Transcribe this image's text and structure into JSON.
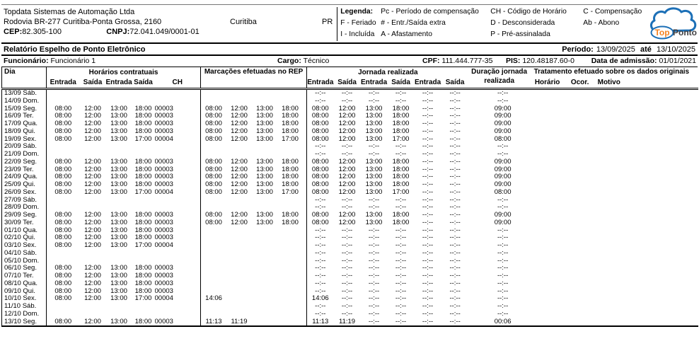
{
  "company": {
    "name": "Topdata Sistemas de Automação Ltda",
    "address": "Rodovia BR-277 Curitiba-Ponta Grossa, 2160",
    "city": "Curitiba",
    "state": "PR",
    "cep_label": "CEP:",
    "cep": "82.305-100",
    "cnpj_label": "CNPJ:",
    "cnpj": "72.041.049/0001-01"
  },
  "legend": {
    "rows": [
      [
        "Legenda:",
        "Pc - Período de compensação",
        "CH - Código de Horário",
        "C - Compensação"
      ],
      [
        "F - Feriado",
        "# - Entr./Saída extra",
        "D - Desconsiderada",
        "Ab - Abono"
      ],
      [
        "I - Incluída",
        "A - Afastamento",
        "P - Pré-assinalada",
        ""
      ]
    ]
  },
  "logo": {
    "top": "Top",
    "ponto": "Ponto",
    "cloud_color": "#1d70b7",
    "top_color": "#f58220",
    "ponto_color": "#414042"
  },
  "report": {
    "title": "Relatório Espelho de Ponto Eletrônico",
    "period_label": "Período:",
    "period_start": "13/09/2025",
    "period_until": "até",
    "period_end": "13/10/2025"
  },
  "employee": {
    "label": "Funcionário:",
    "name": "Funcionário 1",
    "cargo_label": "Cargo:",
    "cargo": "Técnico",
    "cpf_label": "CPF:",
    "cpf": "111.444.777-35",
    "pis_label": "PIS:",
    "pis": "120.48187.60-0",
    "admission_label": "Data de admissão:",
    "admission": "01/01/2021"
  },
  "table": {
    "headers": {
      "dia": "Dia",
      "contract_group": "Horários contratuais",
      "contract_cols": [
        "Entrada",
        "Saída",
        "Entrada",
        "Saída",
        "CH"
      ],
      "rep_group": "Marcações efetuadas no REP",
      "journey_group": "Jornada realizada",
      "journey_cols": [
        "Entrada",
        "Saída",
        "Entrada",
        "Saída",
        "Entrada",
        "Saída"
      ],
      "duration_line1": "Duração jornada",
      "duration_line2": "realizada",
      "treatment_group": "Tratamento efetuado sobre os dados originais",
      "treatment_cols": [
        "Horário",
        "Ocor.",
        "Motivo"
      ]
    },
    "rows": [
      {
        "day": "13/09 Sáb.",
        "contract": [],
        "rep": [],
        "journey": [
          "--:--",
          "--:--",
          "--:--",
          "--:--",
          "--:--",
          "--:--"
        ],
        "duration": "--:--",
        "treatment": [
          "",
          "",
          ""
        ]
      },
      {
        "day": "14/09 Dom.",
        "contract": [],
        "rep": [],
        "journey": [
          "--:--",
          "--:--",
          "--:--",
          "--:--",
          "--:--",
          "--:--"
        ],
        "duration": "--:--",
        "treatment": [
          "",
          "",
          ""
        ]
      },
      {
        "day": "15/09 Seg.",
        "contract": [
          "08:00",
          "12:00",
          "13:00",
          "18:00",
          "00003"
        ],
        "rep": [
          "08:00",
          "12:00",
          "13:00",
          "18:00"
        ],
        "journey": [
          "08:00",
          "12:00",
          "13:00",
          "18:00",
          "--:--",
          "--:--"
        ],
        "duration": "09:00",
        "treatment": [
          "",
          "",
          ""
        ]
      },
      {
        "day": "16/09 Ter.",
        "contract": [
          "08:00",
          "12:00",
          "13:00",
          "18:00",
          "00003"
        ],
        "rep": [
          "08:00",
          "12:00",
          "13:00",
          "18:00"
        ],
        "journey": [
          "08:00",
          "12:00",
          "13:00",
          "18:00",
          "--:--",
          "--:--"
        ],
        "duration": "09:00",
        "treatment": [
          "",
          "",
          ""
        ]
      },
      {
        "day": "17/09 Qua.",
        "contract": [
          "08:00",
          "12:00",
          "13:00",
          "18:00",
          "00003"
        ],
        "rep": [
          "08:00",
          "12:00",
          "13:00",
          "18:00"
        ],
        "journey": [
          "08:00",
          "12:00",
          "13:00",
          "18:00",
          "--:--",
          "--:--"
        ],
        "duration": "09:00",
        "treatment": [
          "",
          "",
          ""
        ]
      },
      {
        "day": "18/09 Qui.",
        "contract": [
          "08:00",
          "12:00",
          "13:00",
          "18:00",
          "00003"
        ],
        "rep": [
          "08:00",
          "12:00",
          "13:00",
          "18:00"
        ],
        "journey": [
          "08:00",
          "12:00",
          "13:00",
          "18:00",
          "--:--",
          "--:--"
        ],
        "duration": "09:00",
        "treatment": [
          "",
          "",
          ""
        ]
      },
      {
        "day": "19/09 Sex.",
        "contract": [
          "08:00",
          "12:00",
          "13:00",
          "17:00",
          "00004"
        ],
        "rep": [
          "08:00",
          "12:00",
          "13:00",
          "17:00"
        ],
        "journey": [
          "08:00",
          "12:00",
          "13:00",
          "17:00",
          "--:--",
          "--:--"
        ],
        "duration": "08:00",
        "treatment": [
          "",
          "",
          ""
        ]
      },
      {
        "day": "20/09 Sáb.",
        "contract": [],
        "rep": [],
        "journey": [
          "--:--",
          "--:--",
          "--:--",
          "--:--",
          "--:--",
          "--:--"
        ],
        "duration": "--:--",
        "treatment": [
          "",
          "",
          ""
        ]
      },
      {
        "day": "21/09 Dom.",
        "contract": [],
        "rep": [],
        "journey": [
          "--:--",
          "--:--",
          "--:--",
          "--:--",
          "--:--",
          "--:--"
        ],
        "duration": "--:--",
        "treatment": [
          "",
          "",
          ""
        ]
      },
      {
        "day": "22/09 Seg.",
        "contract": [
          "08:00",
          "12:00",
          "13:00",
          "18:00",
          "00003"
        ],
        "rep": [
          "08:00",
          "12:00",
          "13:00",
          "18:00"
        ],
        "journey": [
          "08:00",
          "12:00",
          "13:00",
          "18:00",
          "--:--",
          "--:--"
        ],
        "duration": "09:00",
        "treatment": [
          "",
          "",
          ""
        ]
      },
      {
        "day": "23/09 Ter.",
        "contract": [
          "08:00",
          "12:00",
          "13:00",
          "18:00",
          "00003"
        ],
        "rep": [
          "08:00",
          "12:00",
          "13:00",
          "18:00"
        ],
        "journey": [
          "08:00",
          "12:00",
          "13:00",
          "18:00",
          "--:--",
          "--:--"
        ],
        "duration": "09:00",
        "treatment": [
          "",
          "",
          ""
        ]
      },
      {
        "day": "24/09 Qua.",
        "contract": [
          "08:00",
          "12:00",
          "13:00",
          "18:00",
          "00003"
        ],
        "rep": [
          "08:00",
          "12:00",
          "13:00",
          "18:00"
        ],
        "journey": [
          "08:00",
          "12:00",
          "13:00",
          "18:00",
          "--:--",
          "--:--"
        ],
        "duration": "09:00",
        "treatment": [
          "",
          "",
          ""
        ]
      },
      {
        "day": "25/09 Qui.",
        "contract": [
          "08:00",
          "12:00",
          "13:00",
          "18:00",
          "00003"
        ],
        "rep": [
          "08:00",
          "12:00",
          "13:00",
          "18:00"
        ],
        "journey": [
          "08:00",
          "12:00",
          "13:00",
          "18:00",
          "--:--",
          "--:--"
        ],
        "duration": "09:00",
        "treatment": [
          "",
          "",
          ""
        ]
      },
      {
        "day": "26/09 Sex.",
        "contract": [
          "08:00",
          "12:00",
          "13:00",
          "17:00",
          "00004"
        ],
        "rep": [
          "08:00",
          "12:00",
          "13:00",
          "17:00"
        ],
        "journey": [
          "08:00",
          "12:00",
          "13:00",
          "17:00",
          "--:--",
          "--:--"
        ],
        "duration": "08:00",
        "treatment": [
          "",
          "",
          ""
        ]
      },
      {
        "day": "27/09 Sáb.",
        "contract": [],
        "rep": [],
        "journey": [
          "--:--",
          "--:--",
          "--:--",
          "--:--",
          "--:--",
          "--:--"
        ],
        "duration": "--:--",
        "treatment": [
          "",
          "",
          ""
        ]
      },
      {
        "day": "28/09 Dom.",
        "contract": [],
        "rep": [],
        "journey": [
          "--:--",
          "--:--",
          "--:--",
          "--:--",
          "--:--",
          "--:--"
        ],
        "duration": "--:--",
        "treatment": [
          "",
          "",
          ""
        ]
      },
      {
        "day": "29/09 Seg.",
        "contract": [
          "08:00",
          "12:00",
          "13:00",
          "18:00",
          "00003"
        ],
        "rep": [
          "08:00",
          "12:00",
          "13:00",
          "18:00"
        ],
        "journey": [
          "08:00",
          "12:00",
          "13:00",
          "18:00",
          "--:--",
          "--:--"
        ],
        "duration": "09:00",
        "treatment": [
          "",
          "",
          ""
        ]
      },
      {
        "day": "30/09 Ter.",
        "contract": [
          "08:00",
          "12:00",
          "13:00",
          "18:00",
          "00003"
        ],
        "rep": [
          "08:00",
          "12:00",
          "13:00",
          "18:00"
        ],
        "journey": [
          "08:00",
          "12:00",
          "13:00",
          "18:00",
          "--:--",
          "--:--"
        ],
        "duration": "09:00",
        "treatment": [
          "",
          "",
          ""
        ]
      },
      {
        "day": "01/10 Qua.",
        "contract": [
          "08:00",
          "12:00",
          "13:00",
          "18:00",
          "00003"
        ],
        "rep": [],
        "journey": [
          "--:--",
          "--:--",
          "--:--",
          "--:--",
          "--:--",
          "--:--"
        ],
        "duration": "--:--",
        "treatment": [
          "",
          "",
          ""
        ]
      },
      {
        "day": "02/10 Qui.",
        "contract": [
          "08:00",
          "12:00",
          "13:00",
          "18:00",
          "00003"
        ],
        "rep": [],
        "journey": [
          "--:--",
          "--:--",
          "--:--",
          "--:--",
          "--:--",
          "--:--"
        ],
        "duration": "--:--",
        "treatment": [
          "",
          "",
          ""
        ]
      },
      {
        "day": "03/10 Sex.",
        "contract": [
          "08:00",
          "12:00",
          "13:00",
          "17:00",
          "00004"
        ],
        "rep": [],
        "journey": [
          "--:--",
          "--:--",
          "--:--",
          "--:--",
          "--:--",
          "--:--"
        ],
        "duration": "--:--",
        "treatment": [
          "",
          "",
          ""
        ]
      },
      {
        "day": "04/10 Sáb.",
        "contract": [],
        "rep": [],
        "journey": [
          "--:--",
          "--:--",
          "--:--",
          "--:--",
          "--:--",
          "--:--"
        ],
        "duration": "--:--",
        "treatment": [
          "",
          "",
          ""
        ]
      },
      {
        "day": "05/10 Dom.",
        "contract": [],
        "rep": [],
        "journey": [
          "--:--",
          "--:--",
          "--:--",
          "--:--",
          "--:--",
          "--:--"
        ],
        "duration": "--:--",
        "treatment": [
          "",
          "",
          ""
        ]
      },
      {
        "day": "06/10 Seg.",
        "contract": [
          "08:00",
          "12:00",
          "13:00",
          "18:00",
          "00003"
        ],
        "rep": [],
        "journey": [
          "--:--",
          "--:--",
          "--:--",
          "--:--",
          "--:--",
          "--:--"
        ],
        "duration": "--:--",
        "treatment": [
          "",
          "",
          ""
        ]
      },
      {
        "day": "07/10 Ter.",
        "contract": [
          "08:00",
          "12:00",
          "13:00",
          "18:00",
          "00003"
        ],
        "rep": [],
        "journey": [
          "--:--",
          "--:--",
          "--:--",
          "--:--",
          "--:--",
          "--:--"
        ],
        "duration": "--:--",
        "treatment": [
          "",
          "",
          ""
        ]
      },
      {
        "day": "08/10 Qua.",
        "contract": [
          "08:00",
          "12:00",
          "13:00",
          "18:00",
          "00003"
        ],
        "rep": [],
        "journey": [
          "--:--",
          "--:--",
          "--:--",
          "--:--",
          "--:--",
          "--:--"
        ],
        "duration": "--:--",
        "treatment": [
          "",
          "",
          ""
        ]
      },
      {
        "day": "09/10 Qui.",
        "contract": [
          "08:00",
          "12:00",
          "13:00",
          "18:00",
          "00003"
        ],
        "rep": [],
        "journey": [
          "--:--",
          "--:--",
          "--:--",
          "--:--",
          "--:--",
          "--:--"
        ],
        "duration": "--:--",
        "treatment": [
          "",
          "",
          ""
        ]
      },
      {
        "day": "10/10 Sex.",
        "contract": [
          "08:00",
          "12:00",
          "13:00",
          "17:00",
          "00004"
        ],
        "rep": [
          "14:06"
        ],
        "journey": [
          "14:06",
          "--:--",
          "--:--",
          "--:--",
          "--:--",
          "--:--"
        ],
        "duration": "--:--",
        "treatment": [
          "",
          "",
          ""
        ]
      },
      {
        "day": "11/10 Sáb.",
        "contract": [],
        "rep": [],
        "journey": [
          "--:--",
          "--:--",
          "--:--",
          "--:--",
          "--:--",
          "--:--"
        ],
        "duration": "--:--",
        "treatment": [
          "",
          "",
          ""
        ]
      },
      {
        "day": "12/10 Dom.",
        "contract": [],
        "rep": [],
        "journey": [
          "--:--",
          "--:--",
          "--:--",
          "--:--",
          "--:--",
          "--:--"
        ],
        "duration": "--:--",
        "treatment": [
          "",
          "",
          ""
        ]
      },
      {
        "day": "13/10 Seg.",
        "contract": [
          "08:00",
          "12:00",
          "13:00",
          "18:00",
          "00003"
        ],
        "rep": [
          "11:13",
          "11:19"
        ],
        "journey": [
          "11:13",
          "11:19",
          "--:--",
          "--:--",
          "--:--",
          "--:--"
        ],
        "duration": "00:06",
        "treatment": [
          "",
          "",
          ""
        ]
      }
    ]
  }
}
